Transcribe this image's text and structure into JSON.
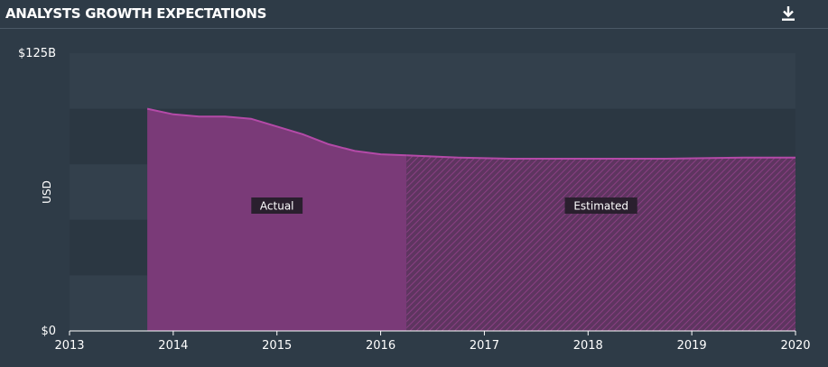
{
  "header": {
    "title": "ANALYSTS GROWTH EXPECTATIONS",
    "download_icon": "download-icon"
  },
  "colors": {
    "background": "#2e3b47",
    "band_dark": "#2b3742",
    "band_light": "#33404c",
    "actual_fill": "#7a3a78",
    "actual_line": "#b44aa8",
    "estimated_hatch": "#8a3f83"
  },
  "chart_data": {
    "type": "area",
    "title": "",
    "xlabel": "",
    "ylabel": "USD",
    "xlim": [
      2013,
      2020
    ],
    "ylim": [
      0,
      125
    ],
    "y_tick_labels": [
      {
        "value": 125,
        "label": "$125B"
      },
      {
        "value": 0,
        "label": "$0"
      }
    ],
    "x_ticks": [
      2013,
      2014,
      2015,
      2016,
      2017,
      2018,
      2019,
      2020
    ],
    "grid": false,
    "regions": [
      {
        "name": "Actual",
        "from": 2013.75,
        "to": 2016.25,
        "style": "solid"
      },
      {
        "name": "Estimated",
        "from": 2016.25,
        "to": 2020.0,
        "style": "hatched"
      }
    ],
    "series": [
      {
        "x": [
          2013.75,
          2014.0,
          2014.25,
          2014.5,
          2014.75,
          2015.0,
          2015.25,
          2015.5,
          2015.75,
          2016.0,
          2016.25,
          2016.75,
          2017.25,
          2018.0,
          2018.75,
          2019.5,
          2020.0
        ],
        "values": [
          100,
          97.5,
          96.5,
          96.5,
          95.5,
          92,
          88.5,
          84,
          81,
          79.5,
          79,
          78,
          77.5,
          77.5,
          77.5,
          78,
          78
        ]
      }
    ]
  }
}
